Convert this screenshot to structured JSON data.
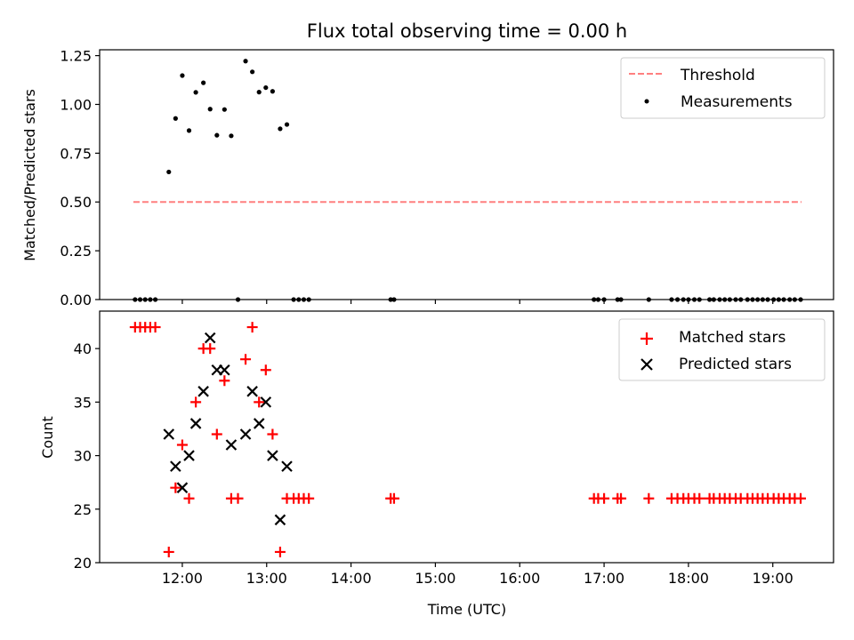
{
  "chart_data": [
    {
      "type": "scatter",
      "title": "Flux total observing time = 0.00 h",
      "xlabel": "",
      "ylabel": "Matched/Predicted stars",
      "xlim": [
        11.02,
        19.72
      ],
      "ylim": [
        0,
        1.28
      ],
      "yticks": [
        0,
        0.25,
        0.5,
        0.75,
        1.0,
        1.25
      ],
      "ytick_labels": [
        "0.00",
        "0.25",
        "0.50",
        "0.75",
        "1.00",
        "1.25"
      ],
      "xticks": [
        12,
        13,
        14,
        15,
        16,
        17,
        18,
        19
      ],
      "xtick_labels": [],
      "legend_position": "upper right",
      "series": [
        {
          "name": "Threshold",
          "kind": "line",
          "style": "dashed",
          "color": "#ff7f7f",
          "x": [
            11.42,
            19.34
          ],
          "y": [
            0.5,
            0.5
          ]
        },
        {
          "name": "Measurements",
          "kind": "scatter",
          "marker": "dot",
          "color": "#000000",
          "x": [
            11.44,
            11.5,
            11.56,
            11.62,
            11.68,
            11.84,
            11.92,
            12.0,
            12.08,
            12.16,
            12.25,
            12.33,
            12.41,
            12.5,
            12.58,
            12.66,
            12.75,
            12.83,
            12.91,
            12.99,
            13.07,
            13.16,
            13.24,
            13.32,
            13.38,
            13.44,
            13.5,
            14.47,
            14.51,
            16.88,
            16.93,
            17.0,
            17.16,
            17.2,
            17.53,
            17.8,
            17.87,
            17.94,
            18.0,
            18.07,
            18.13,
            18.25,
            18.3,
            18.37,
            18.43,
            18.49,
            18.56,
            18.62,
            18.7,
            18.76,
            18.82,
            18.88,
            18.94,
            19.01,
            19.07,
            19.13,
            19.2,
            19.26,
            19.33
          ],
          "y": [
            0,
            0,
            0,
            0,
            0,
            0.654,
            0.928,
            1.148,
            0.866,
            1.062,
            1.111,
            0.976,
            0.842,
            0.974,
            0.839,
            0,
            1.222,
            1.167,
            1.063,
            1.086,
            1.067,
            0.875,
            0.897,
            0,
            0,
            0,
            0,
            0,
            0,
            0,
            0,
            0,
            0,
            0,
            0,
            0,
            0,
            0,
            0,
            0,
            0,
            0,
            0,
            0,
            0,
            0,
            0,
            0,
            0,
            0,
            0,
            0,
            0,
            0,
            0,
            0,
            0,
            0,
            0
          ]
        }
      ]
    },
    {
      "type": "scatter",
      "title": "",
      "xlabel": "Time (UTC)",
      "ylabel": "Count",
      "xlim": [
        11.02,
        19.72
      ],
      "ylim": [
        20,
        43.5
      ],
      "yticks": [
        20,
        25,
        30,
        35,
        40
      ],
      "ytick_labels": [
        "20",
        "25",
        "30",
        "35",
        "40"
      ],
      "xticks": [
        12,
        13,
        14,
        15,
        16,
        17,
        18,
        19
      ],
      "xtick_labels": [
        "12:00",
        "13:00",
        "14:00",
        "15:00",
        "16:00",
        "17:00",
        "18:00",
        "19:00"
      ],
      "legend_position": "upper right",
      "series": [
        {
          "name": "Matched stars",
          "kind": "scatter",
          "marker": "plus",
          "color": "#ff0000",
          "x": [
            11.44,
            11.5,
            11.56,
            11.62,
            11.68,
            11.84,
            11.92,
            12.0,
            12.08,
            12.16,
            12.25,
            12.33,
            12.41,
            12.5,
            12.58,
            12.66,
            12.75,
            12.83,
            12.91,
            12.99,
            13.07,
            13.16,
            13.24,
            13.32,
            13.38,
            13.44,
            13.5,
            14.47,
            14.51,
            16.88,
            16.93,
            17.0,
            17.16,
            17.2,
            17.53,
            17.8,
            17.87,
            17.94,
            18.0,
            18.07,
            18.13,
            18.25,
            18.3,
            18.37,
            18.43,
            18.49,
            18.56,
            18.62,
            18.7,
            18.76,
            18.82,
            18.88,
            18.94,
            19.01,
            19.07,
            19.13,
            19.2,
            19.26,
            19.33
          ],
          "y": [
            42,
            42,
            42,
            42,
            42,
            21,
            27,
            31,
            26,
            35,
            40,
            40,
            32,
            37,
            26,
            26,
            39,
            42,
            35,
            38,
            32,
            21,
            26,
            26,
            26,
            26,
            26,
            26,
            26,
            26,
            26,
            26,
            26,
            26,
            26,
            26,
            26,
            26,
            26,
            26,
            26,
            26,
            26,
            26,
            26,
            26,
            26,
            26,
            26,
            26,
            26,
            26,
            26,
            26,
            26,
            26,
            26,
            26,
            26
          ]
        },
        {
          "name": "Predicted stars",
          "kind": "scatter",
          "marker": "x",
          "color": "#000000",
          "x": [
            11.84,
            11.92,
            12.0,
            12.08,
            12.16,
            12.25,
            12.33,
            12.41,
            12.5,
            12.58,
            12.75,
            12.83,
            12.91,
            12.99,
            13.07,
            13.16,
            13.24
          ],
          "y": [
            32,
            29,
            27,
            30,
            33,
            36,
            41,
            38,
            38,
            31,
            32,
            36,
            33,
            35,
            30,
            24,
            29
          ]
        }
      ]
    }
  ]
}
